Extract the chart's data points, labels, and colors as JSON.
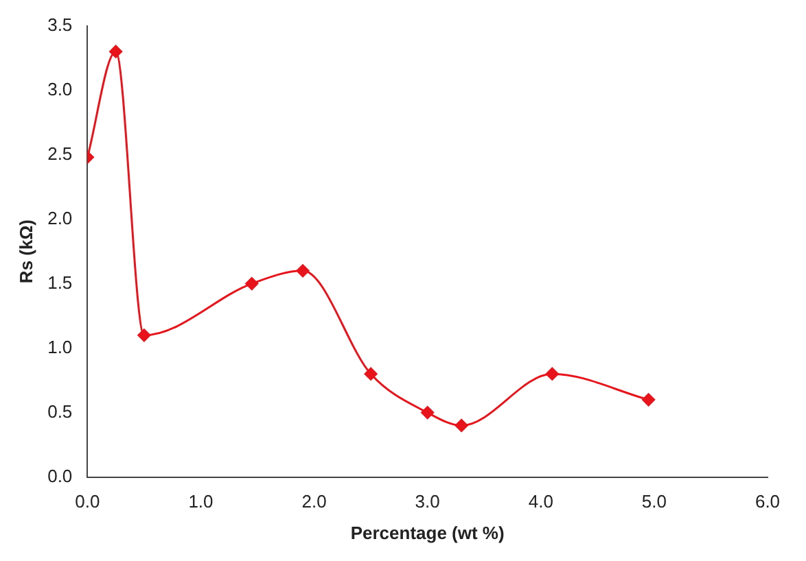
{
  "chart_data": {
    "type": "line",
    "xlabel": "Percentage (wt %)",
    "ylabel": "Rs (kΩ)",
    "x": [
      0,
      0.25,
      0.5,
      1.45,
      1.9,
      2.5,
      3.0,
      3.3,
      4.1,
      4.95
    ],
    "series": [
      {
        "color": "#e8141c",
        "values": [
          2.48,
          3.3,
          1.1,
          1.5,
          1.6,
          0.8,
          0.5,
          0.4,
          0.8,
          0.6
        ]
      }
    ],
    "xlim": [
      0,
      6
    ],
    "ylim": [
      0,
      3.5
    ],
    "xticks": [
      {
        "value": 0,
        "label": "0.0"
      },
      {
        "value": 1,
        "label": "1.0"
      },
      {
        "value": 2,
        "label": "2.0"
      },
      {
        "value": 3,
        "label": "3.0"
      },
      {
        "value": 4,
        "label": "4.0"
      },
      {
        "value": 5,
        "label": "5.0"
      },
      {
        "value": 6,
        "label": "6.0"
      }
    ],
    "yticks": [
      {
        "value": 0,
        "label": "0.0"
      },
      {
        "value": 0.5,
        "label": "0.5"
      },
      {
        "value": 1,
        "label": "1.0"
      },
      {
        "value": 1.5,
        "label": "1.5"
      },
      {
        "value": 2,
        "label": "2.0"
      },
      {
        "value": 2.5,
        "label": "2.5"
      },
      {
        "value": 3,
        "label": "3.0"
      },
      {
        "value": 3.5,
        "label": "3.5"
      }
    ],
    "grid": false,
    "legend": false,
    "marker": "diamond",
    "line_style": "solid"
  }
}
